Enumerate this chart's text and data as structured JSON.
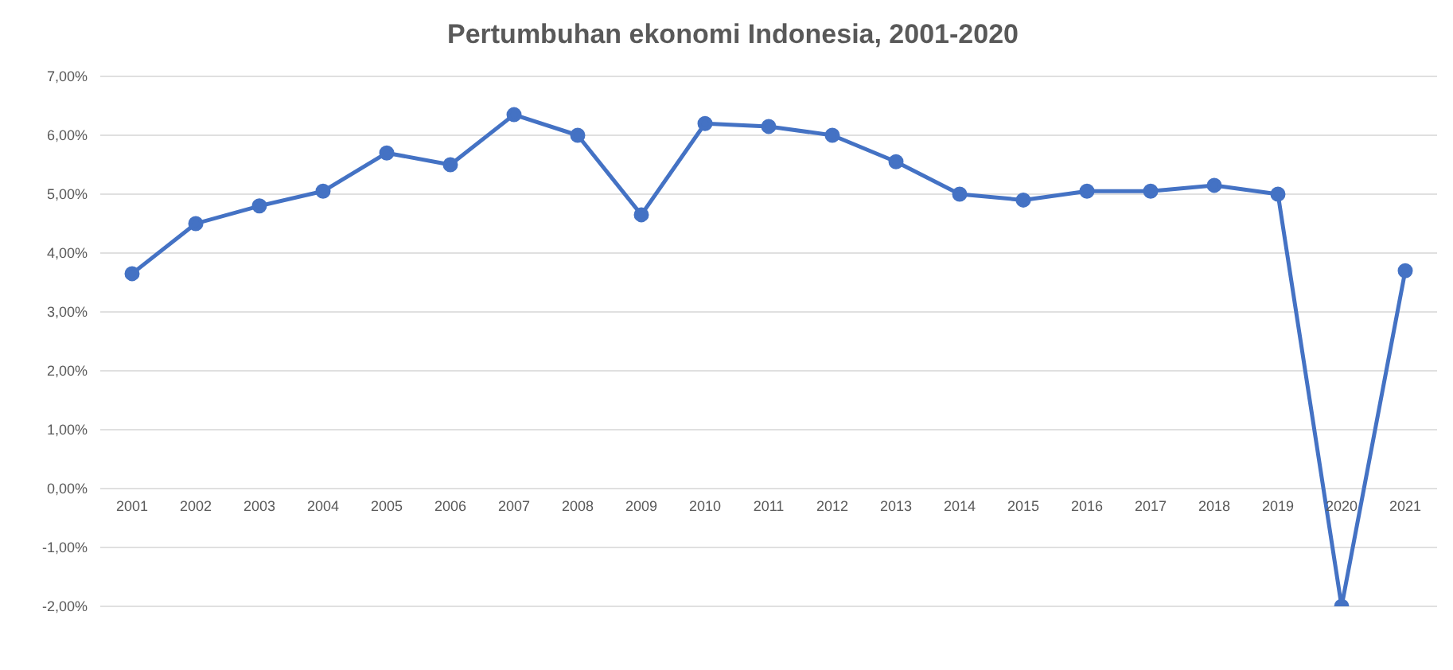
{
  "chart_data": {
    "type": "line",
    "title": "Pertumbuhan ekonomi Indonesia, 2001-2020",
    "categories": [
      "2001",
      "2002",
      "2003",
      "2004",
      "2005",
      "2006",
      "2007",
      "2008",
      "2009",
      "2010",
      "2011",
      "2012",
      "2013",
      "2014",
      "2015",
      "2016",
      "2017",
      "2018",
      "2019",
      "2020",
      "2021"
    ],
    "series": [
      {
        "color": "#4472c4",
        "values": [
          3.65,
          4.5,
          4.8,
          5.05,
          5.7,
          5.5,
          6.35,
          6.0,
          4.65,
          6.2,
          6.15,
          6.0,
          5.55,
          5.0,
          4.9,
          5.05,
          5.05,
          5.15,
          5.0,
          -2.0,
          3.7
        ]
      }
    ],
    "ylim": [
      -2,
      7
    ],
    "yticks": [
      {
        "value": -2,
        "label": "-2,00%"
      },
      {
        "value": -1,
        "label": "-1,00%"
      },
      {
        "value": 0,
        "label": "0,00%"
      },
      {
        "value": 1,
        "label": "1,00%"
      },
      {
        "value": 2,
        "label": "2,00%"
      },
      {
        "value": 3,
        "label": "3,00%"
      },
      {
        "value": 4,
        "label": "4,00%"
      },
      {
        "value": 5,
        "label": "5,00%"
      },
      {
        "value": 6,
        "label": "6,00%"
      },
      {
        "value": 7,
        "label": "7,00%"
      }
    ],
    "grid": "y",
    "marker": "circle",
    "line_style": "solid"
  }
}
